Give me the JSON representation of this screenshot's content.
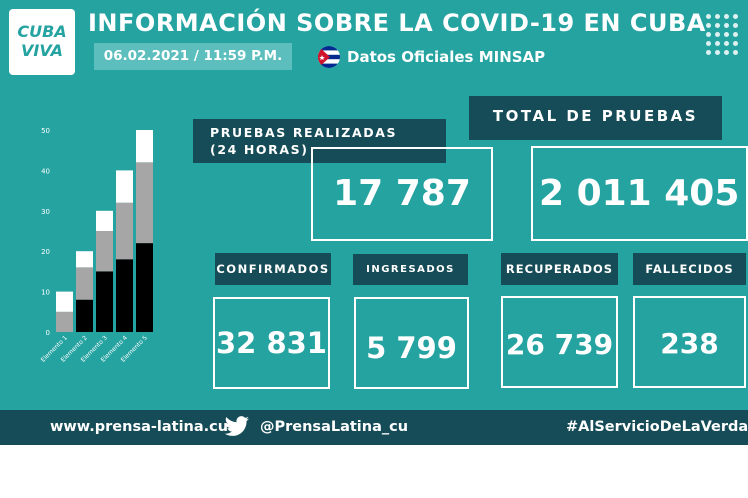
{
  "header": {
    "logo_line1": "CUBA",
    "logo_line2": "VIVA",
    "title": "INFORMACIÓN SOBRE LA COVID-19 EN CUBA",
    "date": "06.02.2021 / 11:59 P.M.",
    "source": "Datos Oficiales MINSAP",
    "flag_icon": "cuba-flag-icon"
  },
  "stats": {
    "pruebas_label_1": "PRUEBAS REALIZADAS",
    "pruebas_label_2": "(24 HORAS)",
    "pruebas_value": "17 787",
    "total_label": "TOTAL DE PRUEBAS",
    "total_value": "2 011 405",
    "confirmados_label": "CONFIRMADOS",
    "confirmados_value": "32 831",
    "ingresados_label": "INGRESADOS",
    "ingresados_value": "5 799",
    "recuperados_label": "RECUPERADOS",
    "recuperados_value": "26 739",
    "fallecidos_label": "FALLECIDOS",
    "fallecidos_value": "238"
  },
  "footer": {
    "website": "www.prensa-latina.cu",
    "handle": "@PrensaLatina_cu",
    "hashtag": "#AlServicioDeLaVerdad",
    "icon": "twitter-bird-icon"
  },
  "colors": {
    "background": "#24a3a1",
    "dark": "#164c57",
    "date_box": "#5cbfbd"
  },
  "chart_data": {
    "type": "bar",
    "stacked": true,
    "categories": [
      "Elemento 1",
      "Elemento 2",
      "Elemento 3",
      "Elemento 4",
      "Elemento 5"
    ],
    "series": [
      {
        "values": [
          0,
          8,
          15,
          18,
          22
        ],
        "color": "#000000"
      },
      {
        "values": [
          5,
          8,
          10,
          14,
          20
        ],
        "color": "#a6a6a6"
      },
      {
        "values": [
          5,
          4,
          5,
          8,
          8
        ],
        "color": "#ffffff"
      }
    ],
    "yticks": [
      0,
      10,
      20,
      30,
      40,
      50
    ],
    "ylim": [
      0,
      50
    ],
    "grid": false,
    "legend": "none"
  }
}
